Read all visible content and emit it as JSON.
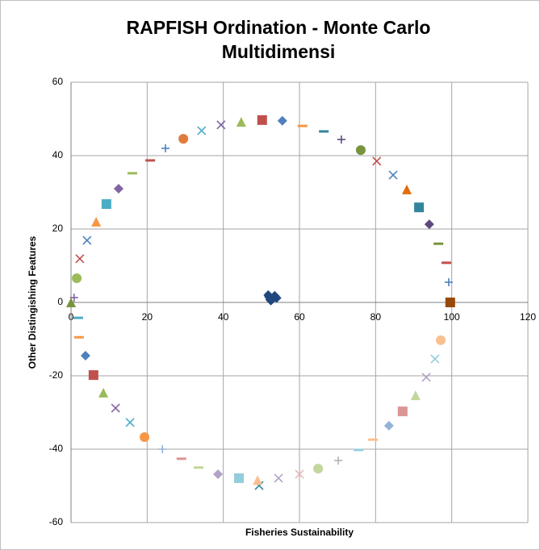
{
  "chart_data": {
    "type": "scatter",
    "title": "RAPFISH Ordination - Monte Carlo Multidimensi",
    "x_label": "Fisheries Sustainability",
    "y_label": "Other Distingishing Features",
    "xlim": [
      0,
      120
    ],
    "xticks": [
      0,
      20,
      40,
      60,
      80,
      100,
      120
    ],
    "ylim": [
      -60,
      60
    ],
    "yticks": [
      -60,
      -40,
      -20,
      0,
      20,
      40,
      60
    ],
    "grid": true,
    "x": [
      0,
      0.8,
      1.5,
      2.3,
      4.2,
      6.6,
      9.3,
      12.5,
      16.1,
      20.8,
      24.8,
      29.5,
      34.3,
      39.4,
      44.7,
      50.2,
      55.5,
      60.8,
      66.4,
      71,
      76.1,
      80.3,
      84.6,
      88.2,
      91.4,
      94.1,
      96.5,
      98.6,
      99.2,
      99.6,
      1.9,
      2.1,
      3.8,
      5.9,
      8.5,
      11.7,
      15.5,
      19.3,
      24,
      29,
      33.5,
      38.6,
      44.1,
      49.4,
      49,
      54.5,
      60,
      64.9,
      70.2,
      75.5,
      79.3,
      83.5,
      87.1,
      90.5,
      93.3,
      95.6,
      97.1,
      52,
      53,
      52.5,
      51.8,
      53.5,
      54,
      52.3
    ],
    "values": [
      0,
      1.3,
      6.6,
      11.9,
      16.9,
      22,
      26.8,
      31,
      35.2,
      38.7,
      42,
      44.6,
      46.8,
      48.4,
      49.2,
      49.7,
      49.5,
      48.1,
      46.6,
      44.4,
      41.5,
      38.5,
      34.7,
      30.8,
      25.9,
      21.3,
      16,
      10.8,
      5.5,
      0,
      -4.2,
      -9.5,
      -14.5,
      -19.8,
      -24.6,
      -28.8,
      -32.7,
      -36.7,
      -40,
      -42.6,
      -45,
      -46.8,
      -47.9,
      -49.9,
      -48.4,
      -47.9,
      -46.8,
      -45.3,
      -43.1,
      -40.2,
      -37.4,
      -33.6,
      -29.7,
      -25.3,
      -20.4,
      -15.4,
      -10.3,
      1.5,
      1,
      0.5,
      2,
      1.8,
      1.2,
      0.8
    ],
    "markers": [
      "triangle",
      "plus",
      "circle",
      "x",
      "x",
      "triangle",
      "square",
      "diamond",
      "dash",
      "dash",
      "plus",
      "circle",
      "x",
      "x",
      "triangle",
      "square",
      "diamond",
      "dash",
      "dash",
      "plus",
      "circle",
      "x",
      "x",
      "triangle",
      "square",
      "diamond",
      "dash",
      "dash",
      "plus",
      "square",
      "dash",
      "dash",
      "diamond",
      "square",
      "triangle",
      "x",
      "x",
      "circle",
      "plus",
      "dash",
      "dash",
      "diamond",
      "square",
      "x",
      "triangle",
      "x",
      "x",
      "circle",
      "plus",
      "dash",
      "dash",
      "diamond",
      "square",
      "triangle",
      "x",
      "x",
      "circle",
      "diamond",
      "diamond",
      "diamond",
      "diamond",
      "diamond",
      "diamond",
      "diamond"
    ],
    "colors": [
      "#77933c",
      "#8064a2",
      "#9bbb59",
      "#c0504d",
      "#4f81bd",
      "#f79646",
      "#4bacc6",
      "#8064a2",
      "#9bbb59",
      "#c0504d",
      "#4f81bd",
      "#e07b39",
      "#4bacc6",
      "#8064a2",
      "#9bbb59",
      "#c0504d",
      "#4f81bd",
      "#f79646",
      "#31859c",
      "#604a7b",
      "#77933c",
      "#c0504d",
      "#4f81bd",
      "#e46c0a",
      "#31859c",
      "#604a7b",
      "#77933c",
      "#c0504d",
      "#4f81bd",
      "#984807",
      "#4bacc6",
      "#f79646",
      "#4f81bd",
      "#c0504d",
      "#9bbb59",
      "#8064a2",
      "#4bacc6",
      "#f79646",
      "#95b3d7",
      "#d99694",
      "#c3d69b",
      "#b3a2c7",
      "#93cddd",
      "#31859c",
      "#fac090",
      "#b3a2c7",
      "#e6b9b8",
      "#c3d69b",
      "#b3b3b3",
      "#93cddd",
      "#fac090",
      "#95b3d7",
      "#d99694",
      "#c3d69b",
      "#b3a2c7",
      "#93cddd",
      "#fac090",
      "#1f497d",
      "#1f497d",
      "#1f497d",
      "#1f497d",
      "#1f497d",
      "#1f497d",
      "#1f497d"
    ]
  }
}
